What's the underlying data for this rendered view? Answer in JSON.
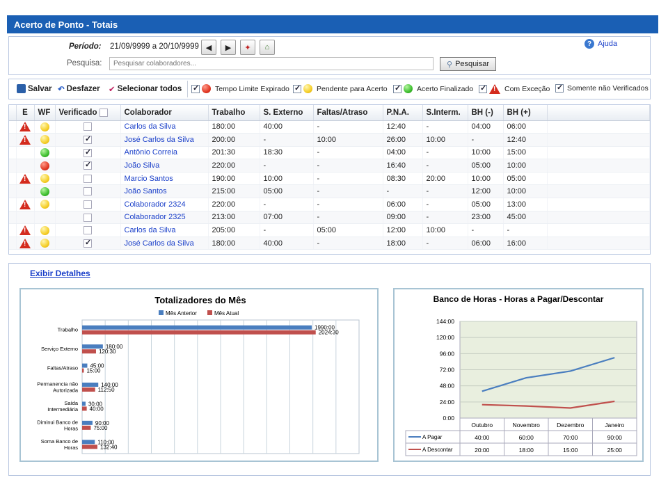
{
  "window": {
    "title": "Acerto de Ponto - Totais"
  },
  "filter": {
    "period_label": "Período:",
    "period_value": "21/09/9999 a 20/10/9999",
    "search_label": "Pesquisa:",
    "search_placeholder": "Pesquisar colaboradores...",
    "search_button": "Pesquisar",
    "help": "Ajuda"
  },
  "toolbar": {
    "save": "Salvar",
    "undo": "Desfazer",
    "select_all": "Selecionar todos",
    "filters": [
      {
        "label": "Tempo Limite Expirado",
        "checked": true,
        "icon": "red-dot-icon"
      },
      {
        "label": "Pendente para Acerto",
        "checked": true,
        "icon": "yellow-dot-icon"
      },
      {
        "label": "Acerto Finalizado",
        "checked": true,
        "icon": "green-dot-icon"
      },
      {
        "label": "Com Exceção",
        "checked": true,
        "icon": "warning-icon"
      },
      {
        "label": "Somente não Verificados",
        "checked": true,
        "icon": ""
      }
    ]
  },
  "grid": {
    "headers": [
      "E",
      "WF",
      "Verificado",
      "Colaborador",
      "Trabalho",
      "S. Externo",
      "Faltas/Atraso",
      "P.N.A.",
      "S.Interm.",
      "BH (-)",
      "BH (+)"
    ],
    "rows": [
      {
        "e": true,
        "wf": "yellow",
        "ver": false,
        "name": "Carlos da Silva",
        "trab": "180:00",
        "sext": "40:00",
        "falt": "-",
        "pna": "12:40",
        "sint": "-",
        "bhm": "04:00",
        "bhp": "06:00"
      },
      {
        "e": true,
        "wf": "yellow",
        "ver": true,
        "name": "José Carlos da Silva",
        "trab": "200:00",
        "sext": "-",
        "falt": "10:00",
        "pna": "26:00",
        "sint": "10:00",
        "bhm": "-",
        "bhp": "12:40"
      },
      {
        "e": false,
        "wf": "green",
        "ver": true,
        "name": "Antônio Correia",
        "trab": "201:30",
        "sext": "18:30",
        "falt": "-",
        "pna": "04:00",
        "sint": "-",
        "bhm": "10:00",
        "bhp": "15:00"
      },
      {
        "e": false,
        "wf": "red",
        "ver": true,
        "name": "João Silva",
        "trab": "220:00",
        "sext": "-",
        "falt": "-",
        "pna": "16:40",
        "sint": "-",
        "bhm": "05:00",
        "bhp": "10:00"
      },
      {
        "e": true,
        "wf": "yellow",
        "ver": false,
        "name": "Marcio Santos",
        "trab": "190:00",
        "sext": "10:00",
        "falt": "-",
        "pna": "08:30",
        "sint": "20:00",
        "bhm": "10:00",
        "bhp": "05:00"
      },
      {
        "e": false,
        "wf": "green",
        "ver": false,
        "name": "João Santos",
        "trab": "215:00",
        "sext": "05:00",
        "falt": "-",
        "pna": "-",
        "sint": "-",
        "bhm": "12:00",
        "bhp": "10:00"
      },
      {
        "e": true,
        "wf": "yellow",
        "ver": false,
        "name": "Colaborador 2324",
        "trab": "220:00",
        "sext": "-",
        "falt": "-",
        "pna": "06:00",
        "sint": "-",
        "bhm": "05:00",
        "bhp": "13:00"
      },
      {
        "e": false,
        "wf": "",
        "ver": false,
        "name": "Colaborador 2325",
        "trab": "213:00",
        "sext": "07:00",
        "falt": "-",
        "pna": "09:00",
        "sint": "-",
        "bhm": "23:00",
        "bhp": "45:00"
      },
      {
        "e": true,
        "wf": "yellow",
        "ver": false,
        "name": "Carlos da Silva",
        "trab": "205:00",
        "sext": "-",
        "falt": "05:00",
        "pna": "12:00",
        "sint": "10:00",
        "bhm": "-",
        "bhp": "-"
      },
      {
        "e": true,
        "wf": "yellow",
        "ver": true,
        "name": "José Carlos da Silva",
        "trab": "180:00",
        "sext": "40:00",
        "falt": "-",
        "pna": "18:00",
        "sint": "-",
        "bhm": "06:00",
        "bhp": "16:00"
      }
    ]
  },
  "details_link": "Exibir Detalhes",
  "colors": {
    "prev": "#4a7ebf",
    "curr": "#c0504d",
    "pagar": "#4a7ebf",
    "descontar": "#c0504d",
    "title": "#1a5fb4"
  },
  "chart_data": [
    {
      "type": "bar",
      "orientation": "horizontal",
      "title": "Totalizadores do Mês",
      "categories": [
        "Trabalho",
        "Serviço Externo",
        "Faltas/Atraso",
        "Permanencia não Autorizada",
        "Saída Intermediária",
        "Diminui Banco de Horas",
        "Soma Banco de Horas"
      ],
      "series": [
        {
          "name": "Mês Anterior",
          "values": [
            1990,
            180,
            45,
            140,
            30,
            90,
            110
          ],
          "labels": [
            "1990:00",
            "180:00",
            "45:00",
            "140:00",
            "30:00",
            "90:00",
            "110:00"
          ]
        },
        {
          "name": "Mês Atual",
          "values": [
            2024.5,
            120.5,
            15,
            112.83,
            40,
            75,
            132.67
          ],
          "labels": [
            "2024:30",
            "120:30",
            "15:00",
            "112:50",
            "40:00",
            "75:00",
            "132:40"
          ]
        }
      ],
      "xlim": [
        0,
        2400
      ],
      "grid": true,
      "legend": "top"
    },
    {
      "type": "line",
      "title": "Banco de Horas - Horas a Pagar/Descontar",
      "categories": [
        "Outubro",
        "Novembro",
        "Dezembro",
        "Janeiro"
      ],
      "series": [
        {
          "name": "A Pagar",
          "values": [
            40,
            60,
            70,
            90
          ],
          "labels": [
            "40:00",
            "60:00",
            "70:00",
            "90:00"
          ]
        },
        {
          "name": "A Descontar",
          "values": [
            20,
            18,
            15,
            25
          ],
          "labels": [
            "20:00",
            "18:00",
            "15:00",
            "25:00"
          ]
        }
      ],
      "yticks": [
        "0:00",
        "24:00",
        "48:00",
        "72:00",
        "96:00",
        "120:00",
        "144:00"
      ],
      "ylim": [
        0,
        144
      ],
      "grid": true,
      "legend": "data-table"
    }
  ]
}
